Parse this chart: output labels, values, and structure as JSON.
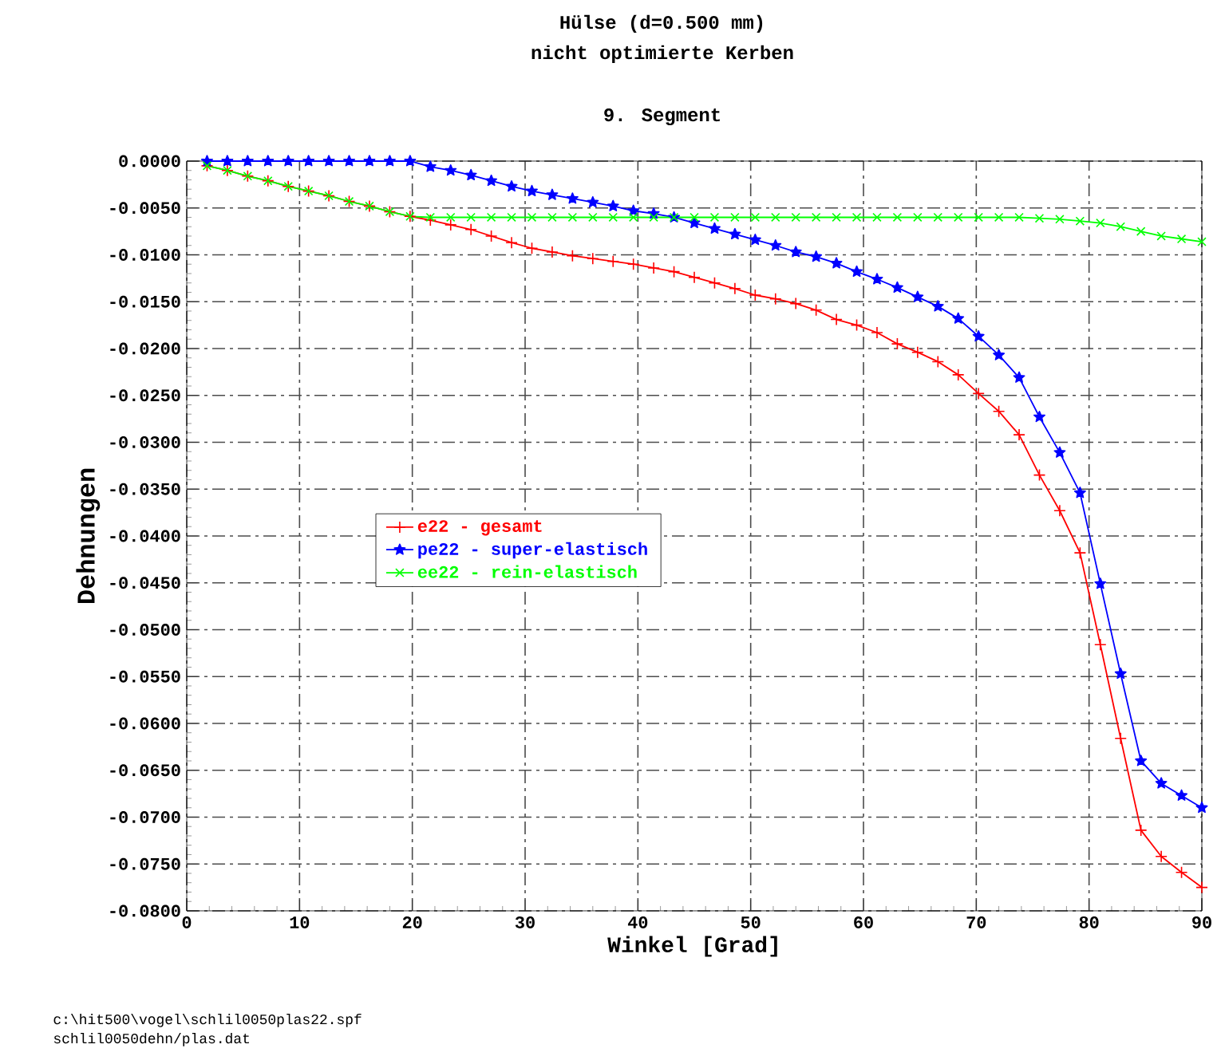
{
  "chart_data": {
    "type": "line",
    "title": "Hülse (d=0.500 mm)",
    "subtitle": "nicht optimierte Kerben",
    "annotations": [
      "9. Segment",
      "c:\\hit500\\vogel\\schlil0050plas22.spf",
      "schlil0050dehn/plas.dat"
    ],
    "xlabel": "Winkel [Grad]",
    "ylabel": "Dehnungen",
    "x": [
      1.8,
      3.6,
      5.4,
      7.2,
      9,
      10.8,
      12.6,
      14.4,
      16.2,
      18,
      19.8,
      21.6,
      23.4,
      25.2,
      27,
      28.8,
      30.6,
      32.4,
      34.2,
      36,
      37.8,
      39.6,
      41.4,
      43.2,
      45,
      46.8,
      48.6,
      50.4,
      52.2,
      54,
      55.8,
      57.6,
      59.4,
      61.2,
      63,
      64.8,
      66.6,
      68.4,
      70.2,
      72,
      73.8,
      75.6,
      77.4,
      79.2,
      81,
      82.8,
      84.6,
      86.4,
      88.2,
      90
    ],
    "series": [
      {
        "name": "e22 -       gesamt",
        "color": "#ff0000",
        "marker": "cross",
        "values": [
          -0.0005,
          -0.001,
          -0.0016,
          -0.0021,
          -0.0027,
          -0.0032,
          -0.0037,
          -0.0043,
          -0.0048,
          -0.0054,
          -0.0059,
          -0.0063,
          -0.0068,
          -0.0073,
          -0.008,
          -0.0087,
          -0.0093,
          -0.0097,
          -0.0101,
          -0.0104,
          -0.0107,
          -0.011,
          -0.0114,
          -0.0118,
          -0.0124,
          -0.013,
          -0.0136,
          -0.0143,
          -0.0147,
          -0.0152,
          -0.0159,
          -0.0169,
          -0.0175,
          -0.0183,
          -0.0195,
          -0.0204,
          -0.0214,
          -0.0228,
          -0.0248,
          -0.0267,
          -0.0292,
          -0.0335,
          -0.0373,
          -0.0418,
          -0.0516,
          -0.0616,
          -0.0714,
          -0.0742,
          -0.0759,
          -0.0775
        ]
      },
      {
        "name": "pe22 - super-elastisch",
        "color": "#0000ff",
        "marker": "star",
        "values": [
          0,
          0,
          0,
          0,
          0,
          0,
          0,
          0,
          0,
          0,
          0,
          -0.0006,
          -0.001,
          -0.0015,
          -0.0021,
          -0.0027,
          -0.0032,
          -0.0036,
          -0.004,
          -0.0044,
          -0.0048,
          -0.0053,
          -0.0056,
          -0.006,
          -0.0066,
          -0.0072,
          -0.0078,
          -0.0084,
          -0.009,
          -0.0097,
          -0.0102,
          -0.0109,
          -0.0118,
          -0.0126,
          -0.0135,
          -0.0145,
          -0.0155,
          -0.0168,
          -0.0187,
          -0.0207,
          -0.0231,
          -0.0273,
          -0.0311,
          -0.0354,
          -0.0451,
          -0.0547,
          -0.064,
          -0.0664,
          -0.0677,
          -0.069
        ]
      },
      {
        "name": "ee22 -  rein-elastisch",
        "color": "#00ff00",
        "marker": "x",
        "values": [
          -0.0005,
          -0.001,
          -0.0016,
          -0.0021,
          -0.0027,
          -0.0032,
          -0.0037,
          -0.0043,
          -0.0048,
          -0.0054,
          -0.0059,
          -0.006,
          -0.006,
          -0.006,
          -0.006,
          -0.006,
          -0.006,
          -0.006,
          -0.006,
          -0.006,
          -0.006,
          -0.006,
          -0.006,
          -0.006,
          -0.006,
          -0.006,
          -0.006,
          -0.006,
          -0.006,
          -0.006,
          -0.006,
          -0.006,
          -0.006,
          -0.006,
          -0.006,
          -0.006,
          -0.006,
          -0.006,
          -0.006,
          -0.006,
          -0.006,
          -0.0061,
          -0.0062,
          -0.0064,
          -0.0066,
          -0.007,
          -0.0075,
          -0.008,
          -0.0083,
          -0.0086
        ]
      }
    ],
    "xlim": [
      0,
      90
    ],
    "xticks": [
      0,
      10,
      20,
      30,
      40,
      50,
      60,
      70,
      80,
      90
    ],
    "ylim": [
      -0.08,
      0
    ],
    "yticks": [
      {
        "value": 0,
        "label": "0.0000"
      },
      {
        "value": -0.005,
        "label": "-0.0050"
      },
      {
        "value": -0.01,
        "label": "-0.0100"
      },
      {
        "value": -0.015,
        "label": "-0.0150"
      },
      {
        "value": -0.02,
        "label": "-0.0200"
      },
      {
        "value": -0.025,
        "label": "-0.0250"
      },
      {
        "value": -0.03,
        "label": "-0.0300"
      },
      {
        "value": -0.035,
        "label": "-0.0350"
      },
      {
        "value": -0.04,
        "label": "-0.0400"
      },
      {
        "value": -0.045,
        "label": "-0.0450"
      },
      {
        "value": -0.05,
        "label": "-0.0500"
      },
      {
        "value": -0.055,
        "label": "-0.0550"
      },
      {
        "value": -0.06,
        "label": "-0.0600"
      },
      {
        "value": -0.065,
        "label": "-0.0650"
      },
      {
        "value": -0.07,
        "label": "-0.0700"
      },
      {
        "value": -0.075,
        "label": "-0.0750"
      },
      {
        "value": -0.08,
        "label": "-0.0800"
      }
    ],
    "grid": true,
    "legend": "left",
    "line_style": "solid"
  }
}
